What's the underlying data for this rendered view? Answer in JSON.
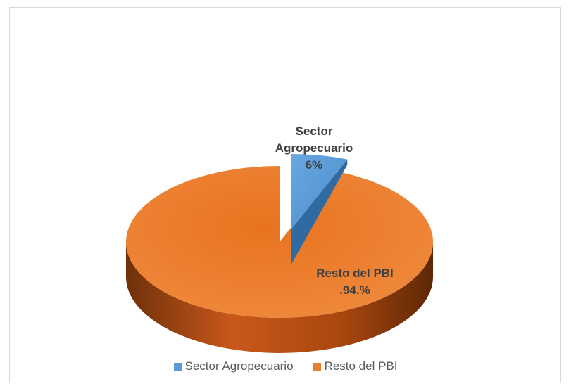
{
  "chart_data": {
    "type": "pie",
    "style": "3d-exploded",
    "categories": [
      "Sector Agropecuario",
      "Resto del PBI"
    ],
    "values": [
      6,
      94
    ],
    "data_labels": [
      {
        "lines": [
          "Sector",
          "Agropecuario",
          "6%"
        ]
      },
      {
        "lines": [
          "Resto del PBI",
          ".94.%"
        ]
      }
    ],
    "colors": [
      "#5b9bd5",
      "#ed7d31"
    ],
    "legend_position": "bottom",
    "title": ""
  },
  "legend": {
    "items": [
      {
        "label": "Sector Agropecuario",
        "color": "#5b9bd5"
      },
      {
        "label": "Resto del PBI",
        "color": "#ed7d31"
      }
    ]
  }
}
